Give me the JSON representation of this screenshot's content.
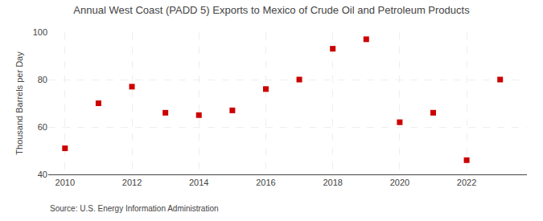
{
  "chart_data": {
    "type": "scatter",
    "title": "Annual West Coast (PADD 5) Exports to Mexico of Crude Oil and Petroleum Products",
    "y_label": "Thousand Barrels per Day",
    "source": "Source: U.S. Energy Information Administration",
    "x": [
      2010,
      2011,
      2012,
      2013,
      2014,
      2015,
      2016,
      2017,
      2018,
      2019,
      2020,
      2021,
      2022,
      2023
    ],
    "values": [
      51,
      70,
      77,
      66,
      65,
      67,
      76,
      80,
      93,
      97,
      62,
      66,
      46,
      80
    ],
    "color": "#cc0000",
    "marker": "square",
    "xlim": [
      2009.5,
      2023.8
    ],
    "ylim": [
      40,
      100
    ],
    "xticks": [
      2010,
      2012,
      2014,
      2016,
      2018,
      2020,
      2022
    ],
    "yticks": [
      40,
      60,
      80,
      100
    ],
    "grid": true
  }
}
